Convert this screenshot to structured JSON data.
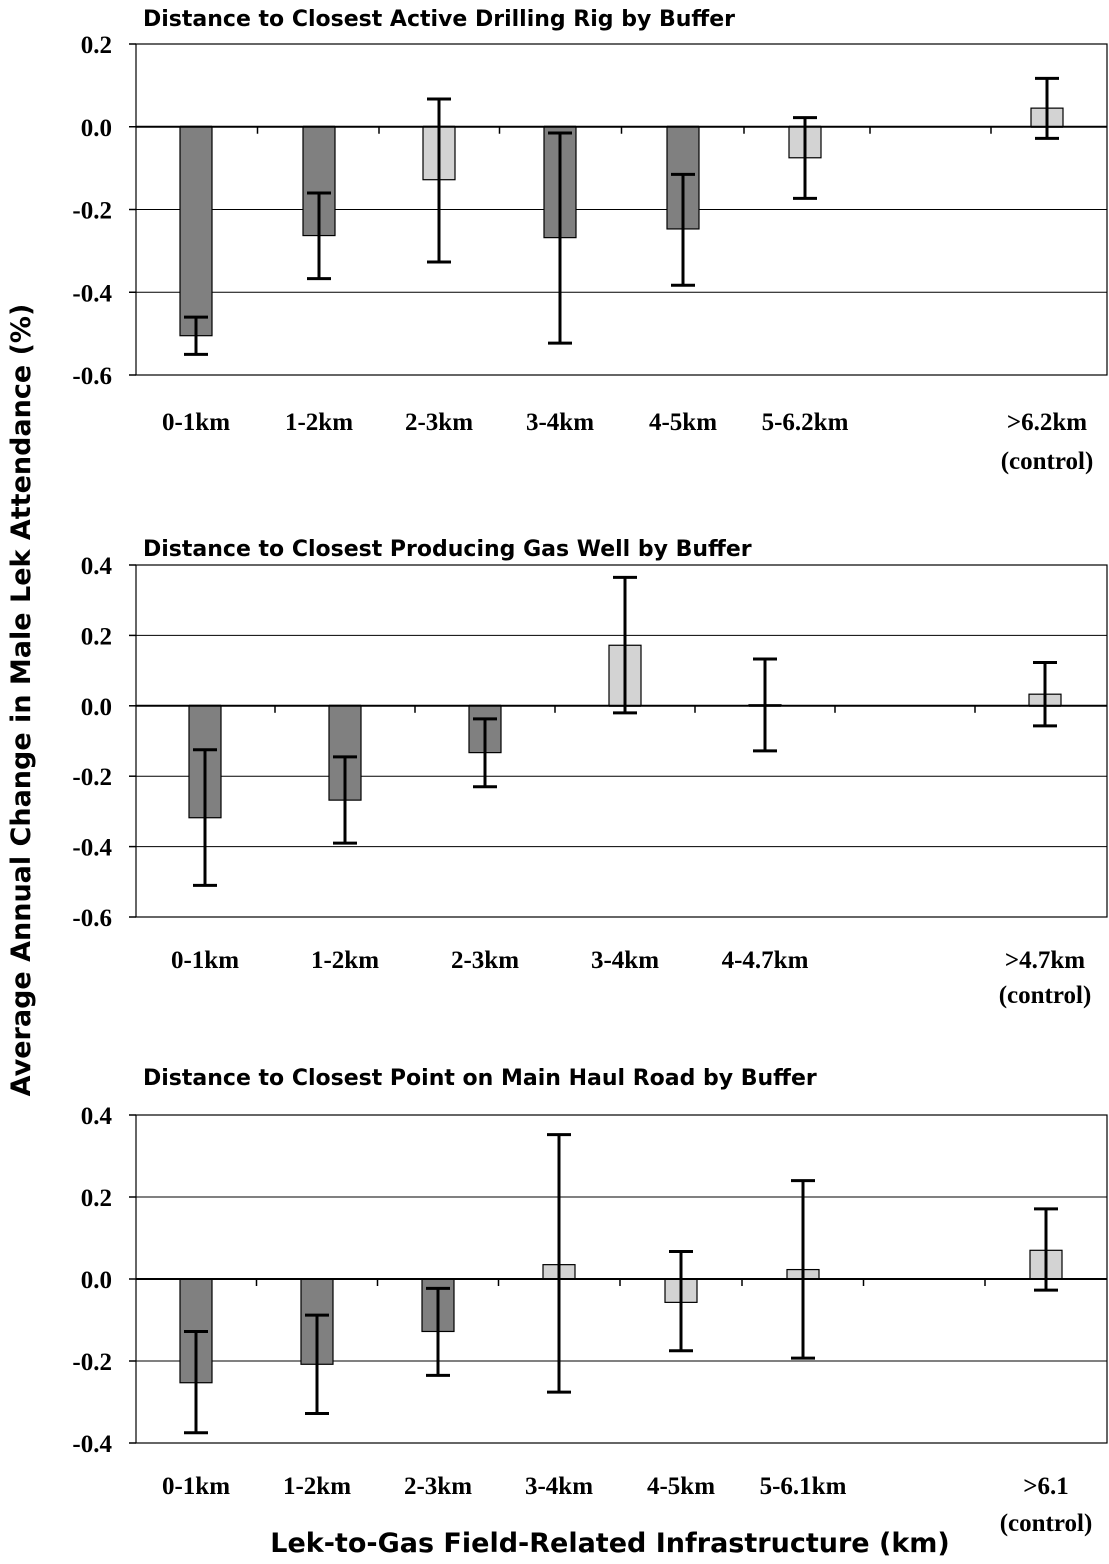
{
  "chart_data": [
    {
      "type": "bar",
      "title": "Distance to Closest Active Drilling Rig by Buffer",
      "ylim": [
        -0.6,
        0.2
      ],
      "yticks": [
        "0.2",
        "0.0",
        "-0.2",
        "-0.4",
        "-0.6"
      ],
      "ytick_values": [
        0.2,
        0.0,
        -0.2,
        -0.4,
        -0.6
      ],
      "grid": true,
      "categories": [
        "0-1km",
        "1-2km",
        "2-3km",
        "3-4km",
        "4-5km",
        "5-6.2km",
        "",
        ">6.2km"
      ],
      "category_sublabels": [
        "",
        "",
        "",
        "",
        "",
        "",
        "",
        "(control)"
      ],
      "values": [
        -0.505,
        -0.263,
        -0.128,
        -0.268,
        -0.247,
        -0.075,
        null,
        0.045
      ],
      "error_low": [
        -0.55,
        -0.367,
        -0.327,
        -0.523,
        -0.383,
        -0.173,
        null,
        -0.028
      ],
      "error_high": [
        -0.46,
        -0.16,
        0.067,
        -0.015,
        -0.115,
        0.022,
        null,
        0.117
      ],
      "bar_colors": [
        "#808080",
        "#808080",
        "#d3d3d3",
        "#808080",
        "#808080",
        "#d3d3d3",
        null,
        "#d3d3d3"
      ]
    },
    {
      "type": "bar",
      "title": "Distance to Closest Producing Gas Well by Buffer",
      "ylim": [
        -0.6,
        0.4
      ],
      "yticks": [
        "0.4",
        "0.2",
        "0.0",
        "-0.2",
        "-0.4",
        "-0.6"
      ],
      "ytick_values": [
        0.4,
        0.2,
        0.0,
        -0.2,
        -0.4,
        -0.6
      ],
      "grid": true,
      "categories": [
        "0-1km",
        "1-2km",
        "2-3km",
        "3-4km",
        "4-4.7km",
        "",
        ">4.7km"
      ],
      "category_sublabels": [
        "",
        "",
        "",
        "",
        "",
        "",
        "(control)"
      ],
      "values": [
        -0.318,
        -0.268,
        -0.133,
        0.172,
        0.003,
        null,
        0.033
      ],
      "error_low": [
        -0.51,
        -0.39,
        -0.23,
        -0.02,
        -0.128,
        null,
        -0.057
      ],
      "error_high": [
        -0.125,
        -0.145,
        -0.037,
        0.365,
        0.133,
        null,
        0.123
      ],
      "bar_colors": [
        "#808080",
        "#808080",
        "#808080",
        "#d3d3d3",
        "#d3d3d3",
        null,
        "#d3d3d3"
      ]
    },
    {
      "type": "bar",
      "title": "Distance to Closest Point on Main Haul Road by Buffer",
      "ylim": [
        -0.4,
        0.4
      ],
      "yticks": [
        "0.4",
        "0.2",
        "0.0",
        "-0.2",
        "-0.4"
      ],
      "ytick_values": [
        0.4,
        0.2,
        0.0,
        -0.2,
        -0.4
      ],
      "grid": true,
      "categories": [
        "0-1km",
        "1-2km",
        "2-3km",
        "3-4km",
        "4-5km",
        "5-6.1km",
        "",
        ">6.1"
      ],
      "category_sublabels": [
        "",
        "",
        "",
        "",
        "",
        "",
        "",
        "(control)"
      ],
      "values": [
        -0.253,
        -0.208,
        -0.128,
        0.035,
        -0.057,
        0.023,
        null,
        0.07
      ],
      "error_low": [
        -0.375,
        -0.328,
        -0.235,
        -0.276,
        -0.175,
        -0.193,
        null,
        -0.027
      ],
      "error_high": [
        -0.128,
        -0.088,
        -0.023,
        0.352,
        0.067,
        0.24,
        null,
        0.171
      ],
      "bar_colors": [
        "#808080",
        "#808080",
        "#808080",
        "#d3d3d3",
        "#d3d3d3",
        "#d3d3d3",
        null,
        "#d3d3d3"
      ]
    }
  ],
  "ylabel": "Average Annual Change in Male Lek Attendance (%)",
  "xlabel": "Lek-to-Gas Field-Related Infrastructure (km)"
}
